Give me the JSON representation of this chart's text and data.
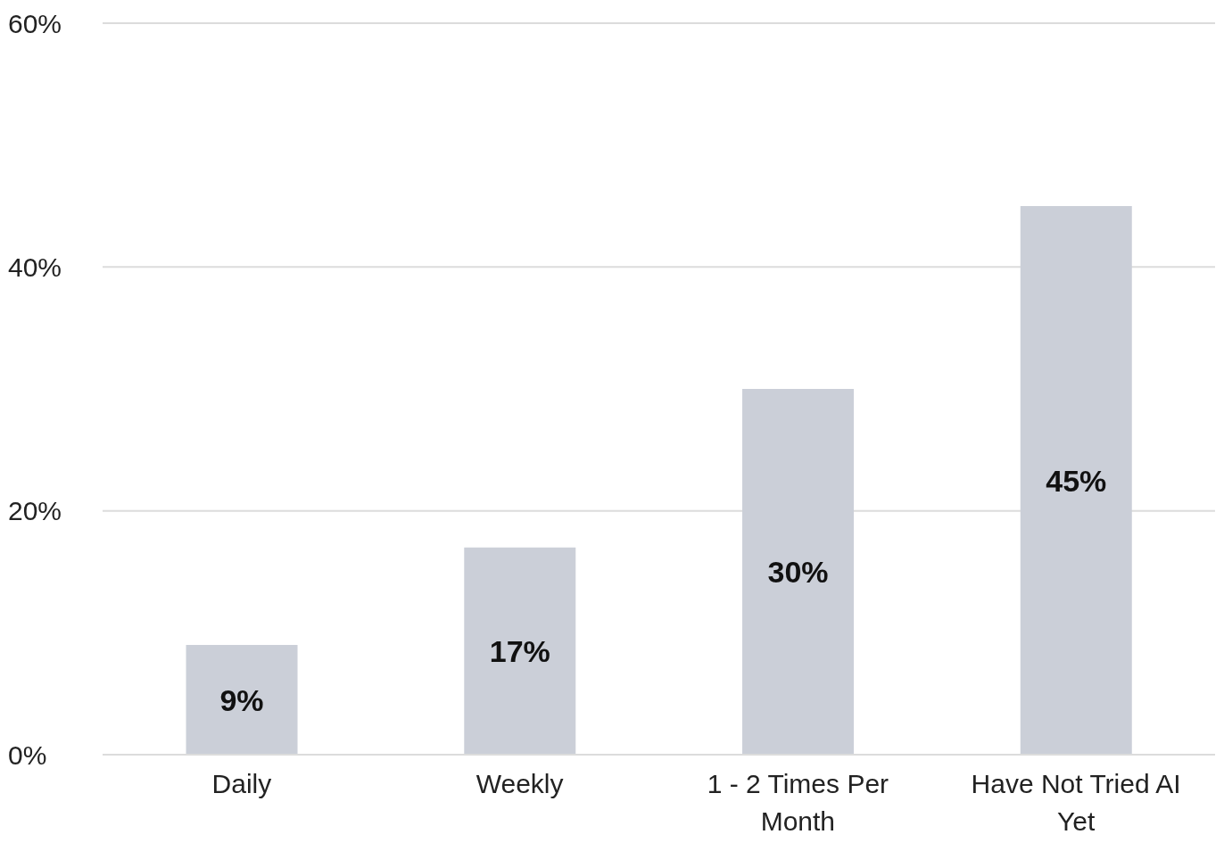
{
  "chart_data": {
    "type": "bar",
    "categories": [
      "Daily",
      "Weekly",
      "1 - 2 Times Per Month",
      "Have Not Tried AI Yet"
    ],
    "values": [
      9,
      17,
      30,
      45
    ],
    "color": "#cbcfd8",
    "ylim": [
      0,
      60
    ],
    "yticks": [
      {
        "value": 0,
        "label": "0%"
      },
      {
        "value": 20,
        "label": "20%"
      },
      {
        "value": 40,
        "label": "40%"
      },
      {
        "value": 60,
        "label": "60%"
      }
    ],
    "grid": "y",
    "value_labels": [
      "9%",
      "17%",
      "30%",
      "45%"
    ]
  }
}
